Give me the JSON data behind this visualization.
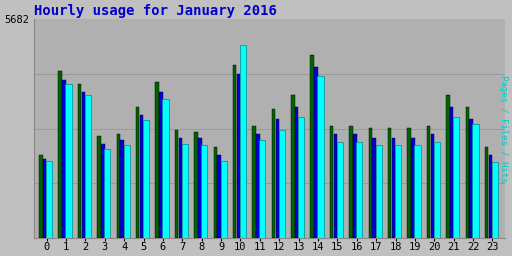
{
  "title": "Hourly usage for January 2016",
  "ylabel_right": "Pages / Files / Hits",
  "hours": [
    0,
    1,
    2,
    3,
    4,
    5,
    6,
    7,
    8,
    9,
    10,
    11,
    12,
    13,
    14,
    15,
    16,
    17,
    18,
    19,
    20,
    21,
    22,
    23
  ],
  "pages": [
    2150,
    4350,
    4000,
    2650,
    2700,
    3400,
    4050,
    2800,
    2750,
    2350,
    4500,
    2900,
    3350,
    3700,
    4750,
    2900,
    2900,
    2850,
    2850,
    2850,
    2900,
    3700,
    3400,
    2350
  ],
  "files": [
    2050,
    4100,
    3800,
    2450,
    2550,
    3200,
    3800,
    2600,
    2600,
    2150,
    4250,
    2700,
    3100,
    3400,
    4450,
    2700,
    2700,
    2600,
    2600,
    2600,
    2700,
    3400,
    3100,
    2150
  ],
  "hits": [
    2000,
    4000,
    3700,
    2300,
    2400,
    3050,
    3600,
    2450,
    2400,
    2000,
    5020,
    2550,
    2800,
    3150,
    4200,
    2500,
    2500,
    2400,
    2400,
    2400,
    2500,
    3150,
    2950,
    1980
  ],
  "color_pages": "#006400",
  "color_files": "#0000dd",
  "color_hits": "#00ffff",
  "color_hits_edge": "#008888",
  "color_bg": "#c0c0c0",
  "color_plot_bg": "#b0b0b0",
  "color_title": "#0000cc",
  "color_ylabel": "#00cccc",
  "ylim_max": 5682,
  "bw_pages": 0.18,
  "bw_files": 0.18,
  "bw_hits": 0.32,
  "title_fontsize": 10,
  "tick_fontsize": 7.5
}
